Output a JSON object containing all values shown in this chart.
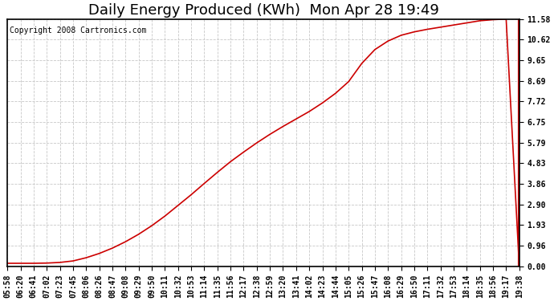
{
  "title": "Daily Energy Produced (KWh)  Mon Apr 28 19:49",
  "copyright_text": "Copyright 2008 Cartronics.com",
  "line_color": "#cc0000",
  "background_color": "#ffffff",
  "plot_background": "#ffffff",
  "grid_color": "#c8c8c8",
  "yticks": [
    0.0,
    0.96,
    1.93,
    2.9,
    3.86,
    4.83,
    5.79,
    6.75,
    7.72,
    8.69,
    9.65,
    10.62,
    11.58
  ],
  "ymax": 11.58,
  "ymin": 0.0,
  "xtick_labels": [
    "05:58",
    "06:20",
    "06:41",
    "07:02",
    "07:23",
    "07:45",
    "08:06",
    "08:26",
    "08:47",
    "09:08",
    "09:29",
    "09:50",
    "10:11",
    "10:32",
    "10:53",
    "11:14",
    "11:35",
    "11:56",
    "12:17",
    "12:38",
    "12:59",
    "13:20",
    "13:41",
    "14:02",
    "14:23",
    "14:44",
    "15:05",
    "15:26",
    "15:47",
    "16:08",
    "16:29",
    "16:50",
    "17:11",
    "17:32",
    "17:53",
    "18:14",
    "18:35",
    "18:56",
    "19:17",
    "19:38"
  ],
  "y_values": [
    0.14,
    0.14,
    0.14,
    0.15,
    0.18,
    0.25,
    0.4,
    0.6,
    0.85,
    1.15,
    1.5,
    1.9,
    2.35,
    2.85,
    3.35,
    3.88,
    4.4,
    4.9,
    5.35,
    5.78,
    6.18,
    6.55,
    6.9,
    7.25,
    7.65,
    8.1,
    8.65,
    9.5,
    10.15,
    10.55,
    10.82,
    10.98,
    11.1,
    11.2,
    11.3,
    11.4,
    11.5,
    11.55,
    11.58,
    0.0
  ],
  "title_fontsize": 13,
  "tick_fontsize": 7,
  "copyright_fontsize": 7,
  "figsize": [
    6.9,
    3.75
  ],
  "dpi": 100
}
